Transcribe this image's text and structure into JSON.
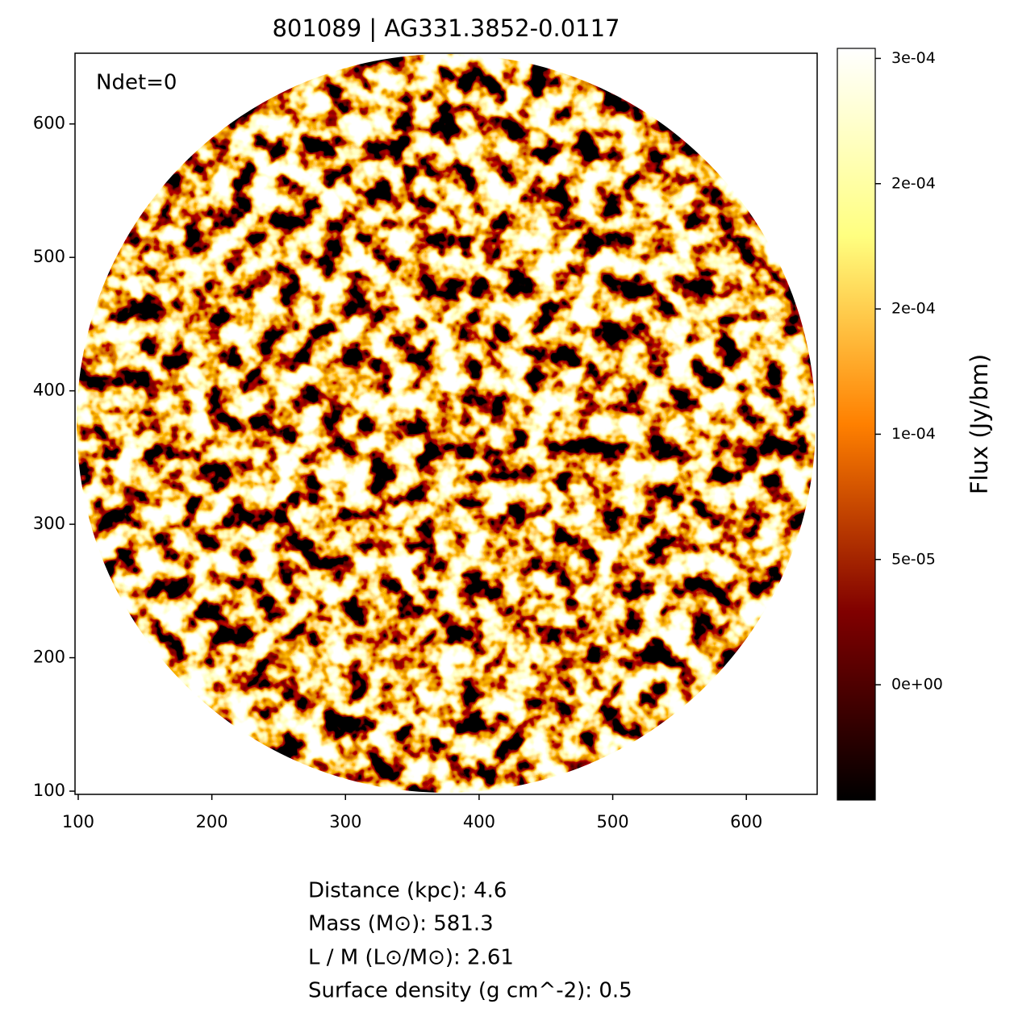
{
  "chart_data": {
    "type": "image",
    "title": "801089 | AG331.3852-0.0117",
    "annotation": "Ndet=0",
    "xlim": [
      97.6,
      653
    ],
    "xticks": [
      100,
      200,
      300,
      400,
      500,
      600
    ],
    "ylim": [
      97.6,
      653
    ],
    "yticks": [
      100,
      200,
      300,
      400,
      500,
      600
    ],
    "colormap": "afmhot",
    "colorbar": {
      "label": "Flux (Jy/bm)",
      "lim": [
        -4.6e-05,
        0.000254
      ],
      "ticks": [
        {
          "value": 0,
          "label": "0e+00"
        },
        {
          "value": 5e-05,
          "label": "5e-05"
        },
        {
          "value": 0.0001,
          "label": "1e-04"
        },
        {
          "value": 0.00015,
          "label": "2e-04"
        },
        {
          "value": 0.0002,
          "label": "2e-04"
        },
        {
          "value": 0.00025,
          "label": "3e-04"
        }
      ]
    },
    "info": [
      "Distance (kpc): 4.6",
      "Mass (M⊙): 581.3",
      "L / M (L⊙/M⊙): 2.61",
      "Surface density (g cm^-2): 0.5"
    ]
  }
}
